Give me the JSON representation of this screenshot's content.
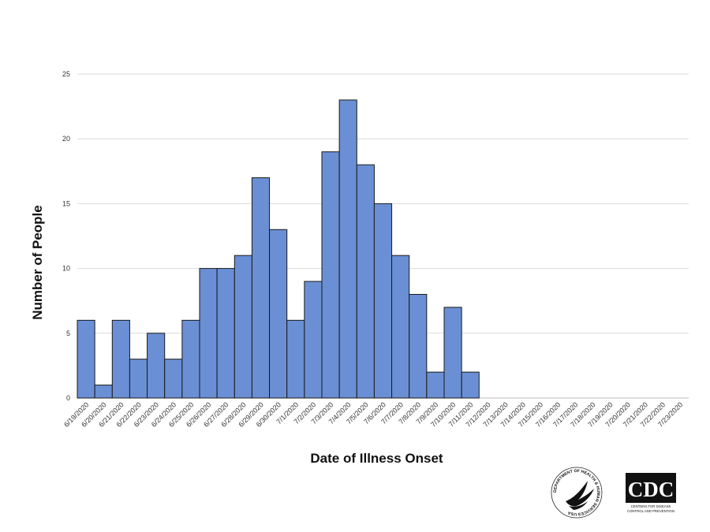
{
  "chart_data": {
    "type": "bar",
    "xlabel": "Date of Illness Onset",
    "ylabel": "Number of People",
    "ylim": [
      0,
      25
    ],
    "yticks": [
      0,
      5,
      10,
      15,
      20,
      25
    ],
    "grid": true,
    "bar_color": "#6a8fd4",
    "bar_edge_color": "#1a1a1a",
    "categories": [
      "6/19/2020",
      "6/20/2020",
      "6/21/2020",
      "6/22/2020",
      "6/23/2020",
      "6/24/2020",
      "6/25/2020",
      "6/26/2020",
      "6/27/2020",
      "6/28/2020",
      "6/29/2020",
      "6/30/2020",
      "7/1/2020",
      "7/2/2020",
      "7/3/2020",
      "7/4/2020",
      "7/5/2020",
      "7/6/2020",
      "7/7/2020",
      "7/8/2020",
      "7/9/2020",
      "7/10/2020",
      "7/11/2020",
      "7/12/2020",
      "7/13/2020",
      "7/14/2020",
      "7/15/2020",
      "7/16/2020",
      "7/17/2020",
      "7/18/2020",
      "7/19/2020",
      "7/20/2020",
      "7/21/2020",
      "7/22/2020",
      "7/23/2020"
    ],
    "values": [
      6,
      1,
      6,
      3,
      5,
      3,
      6,
      10,
      10,
      11,
      17,
      13,
      6,
      9,
      19,
      23,
      18,
      15,
      11,
      8,
      2,
      7,
      2,
      0,
      0,
      0,
      0,
      0,
      0,
      0,
      0,
      0,
      0,
      0,
      0
    ]
  },
  "logos": {
    "hhs": "DEPARTMENT OF HEALTH & HUMAN SERVICES USA",
    "cdc": "CDC",
    "cdc_tagline_1": "CENTERS FOR DISEASE",
    "cdc_tagline_2": "CONTROL AND PREVENTION"
  }
}
